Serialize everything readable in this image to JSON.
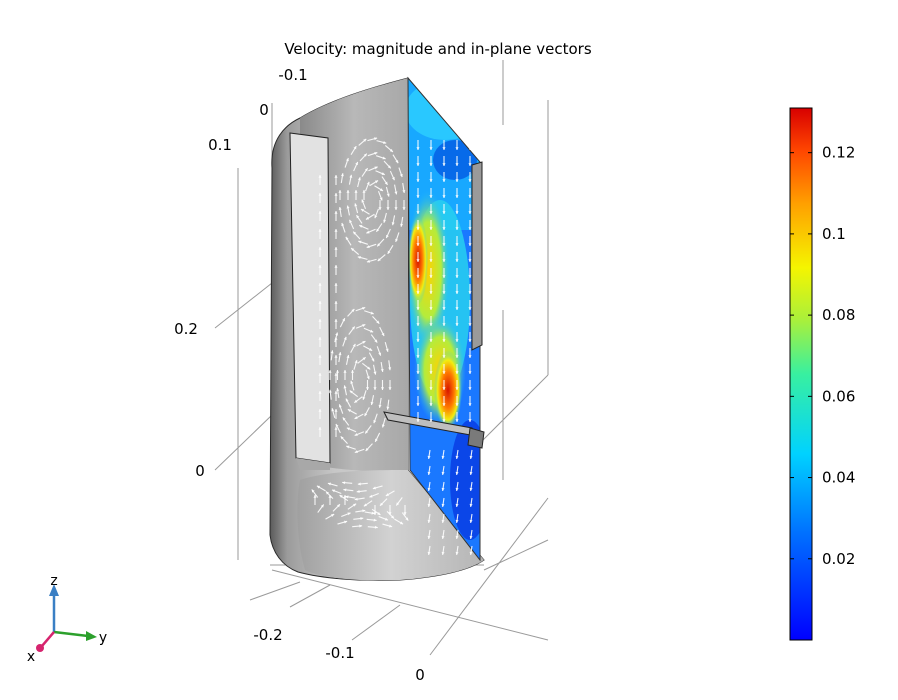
{
  "chart_data": {
    "type": "3d-surface-vector-plot",
    "title": "Velocity: magnitude and in-plane vectors",
    "quantity": "velocity magnitude",
    "colorbar": {
      "colormap": "rainbow",
      "min": 0,
      "max": 0.131,
      "ticks": [
        0.02,
        0.04,
        0.06,
        0.08,
        0.1,
        0.12
      ],
      "tick_labels": [
        "0.02",
        "0.04",
        "0.06",
        "0.08",
        "0.1",
        "0.12"
      ],
      "position": "right"
    },
    "axes": {
      "x_ticks": [
        "-0.2",
        "-0.1",
        "0"
      ],
      "y_ticks": [
        "-0.1",
        "0"
      ],
      "z_ticks": [
        "0.1",
        "0.2",
        "0"
      ]
    },
    "triad": {
      "x": "x",
      "y": "y",
      "z": "z"
    },
    "colors": {
      "x_axis": "#d6246e",
      "y_axis": "#2ca02c",
      "z_axis": "#3a7fc4",
      "arrows": "#ffffff"
    }
  }
}
